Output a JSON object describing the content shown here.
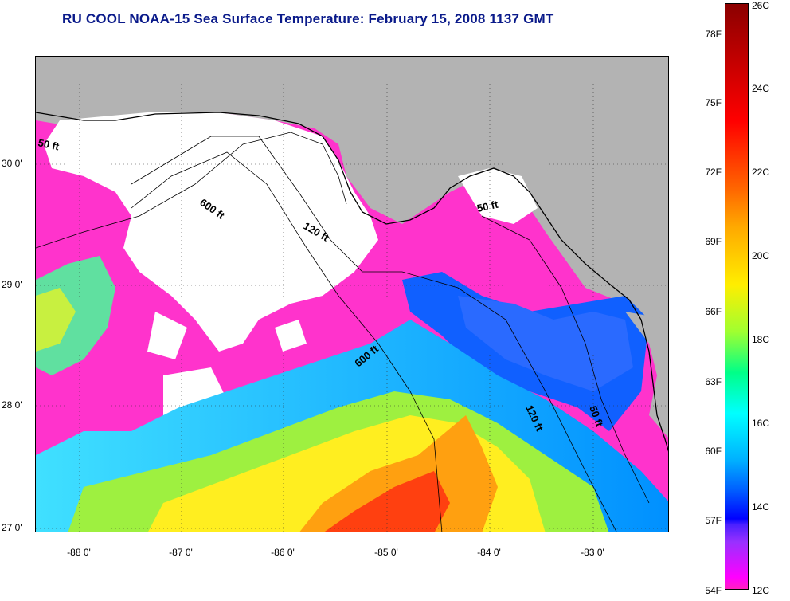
{
  "title": "RU COOL  NOAA-15  Sea Surface Temperature:  February 15, 2008 1137 GMT",
  "lat_labels": [
    "30 0'",
    "29 0'",
    "28 0'",
    "27 0'"
  ],
  "lon_labels": [
    "-88 0'",
    "-87 0'",
    "-86 0'",
    "-85 0'",
    "-84 0'",
    "-83 0'"
  ],
  "depth_labels": [
    "50 ft",
    "600 ft",
    "120 ft",
    "50 ft",
    "600 ft",
    "120 ft",
    "50 ft"
  ],
  "colorbar": {
    "fahrenheit": [
      "78F",
      "75F",
      "72F",
      "69F",
      "66F",
      "63F",
      "60F",
      "57F",
      "54F"
    ],
    "celsius": [
      "26C",
      "24C",
      "22C",
      "20C",
      "18C",
      "16C",
      "14C",
      "12C"
    ]
  },
  "colors": {
    "title": "#0a1a8a",
    "land": "#b3b3b3",
    "cloud": "#ffffff",
    "cold": "#ff33cc"
  }
}
